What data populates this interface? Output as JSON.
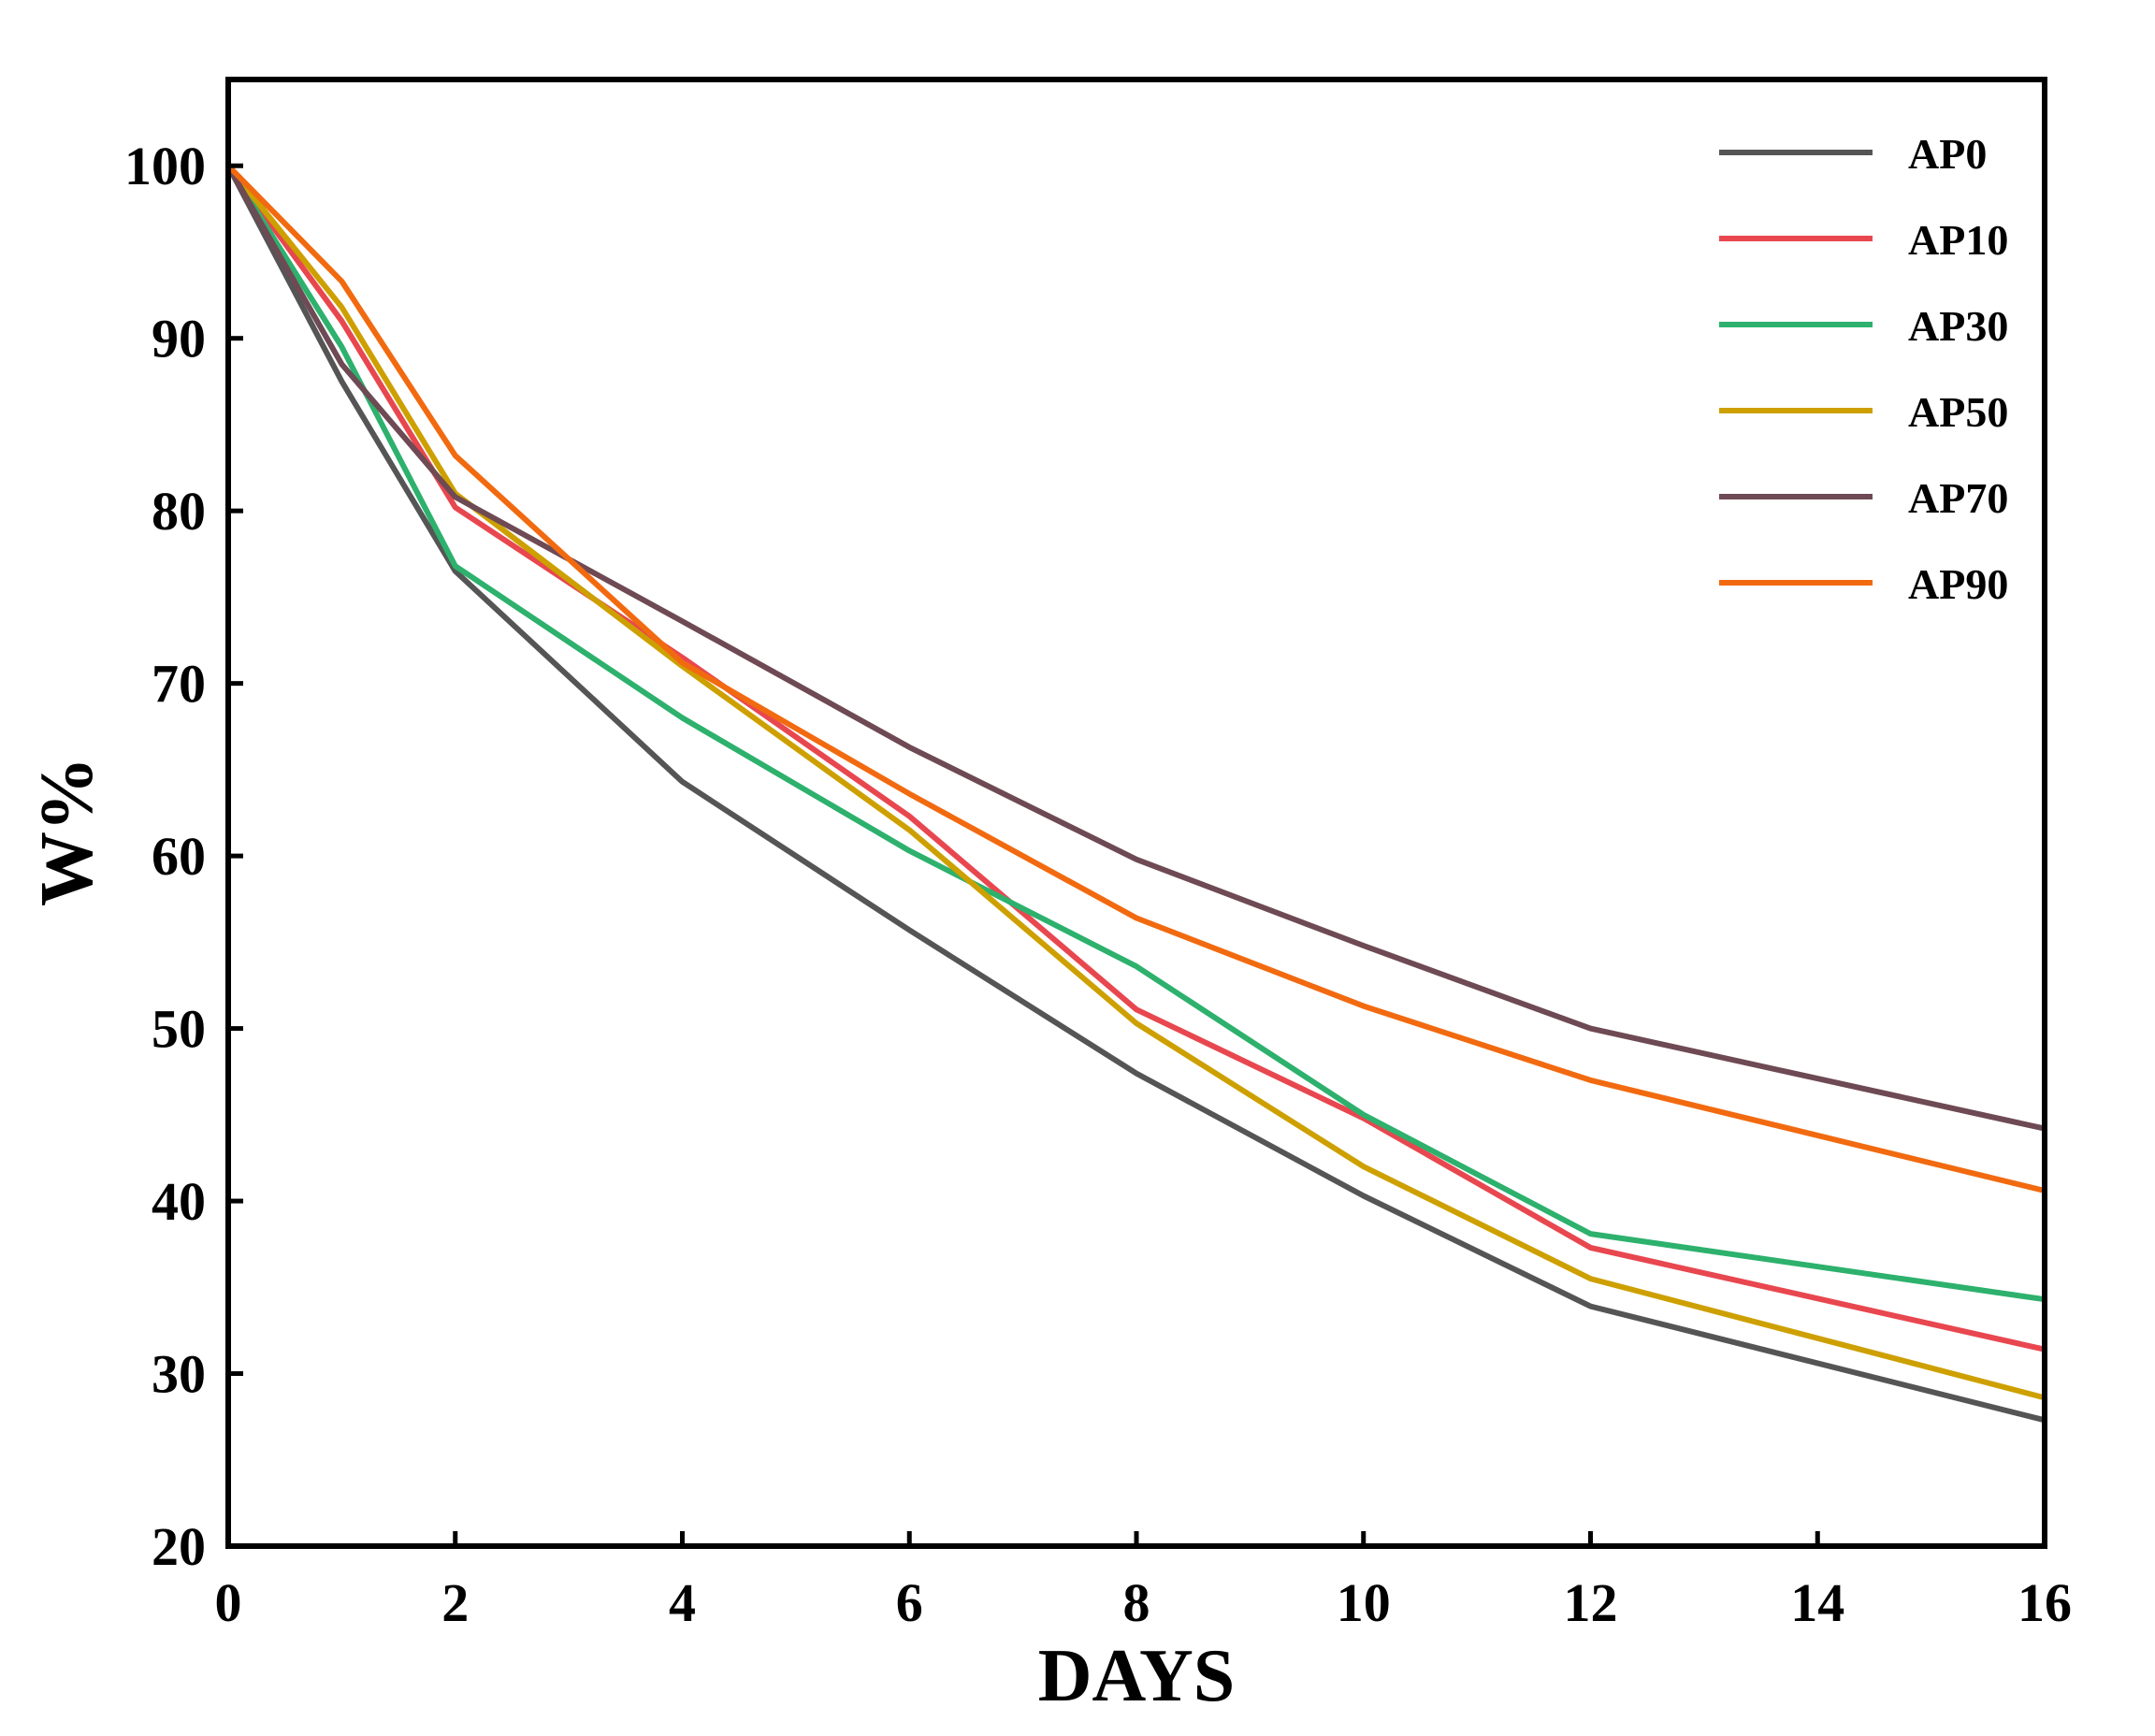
{
  "chart_data": {
    "type": "line",
    "title": "",
    "xlabel": "DAYS",
    "ylabel": "W%",
    "xlim": [
      0,
      16
    ],
    "ylim": [
      20,
      105
    ],
    "xticks": [
      0,
      2,
      4,
      6,
      8,
      10,
      12,
      14,
      16
    ],
    "yticks": [
      20,
      30,
      40,
      50,
      60,
      70,
      80,
      90,
      100
    ],
    "grid": false,
    "legend_position": "top-right",
    "series": [
      {
        "name": "AP0",
        "color": "#555555",
        "x": [
          0,
          1,
          2,
          4,
          6,
          8,
          10,
          12,
          16
        ],
        "values": [
          100,
          87.5,
          76.5,
          64.3,
          55.7,
          47.4,
          40.3,
          33.9,
          27.3
        ]
      },
      {
        "name": "AP10",
        "color": "#E8474F",
        "x": [
          0,
          1,
          2,
          4,
          6,
          8,
          10,
          12,
          16
        ],
        "values": [
          100,
          91.0,
          80.2,
          71.5,
          62.3,
          51.1,
          44.8,
          37.3,
          31.4
        ]
      },
      {
        "name": "AP30",
        "color": "#2DB16D",
        "x": [
          0,
          1,
          2,
          4,
          6,
          8,
          10,
          12,
          16
        ],
        "values": [
          100,
          89.5,
          76.8,
          68.0,
          60.3,
          53.6,
          45.0,
          38.1,
          34.3
        ]
      },
      {
        "name": "AP50",
        "color": "#CDA000",
        "x": [
          0,
          1,
          2,
          4,
          6,
          8,
          10,
          12,
          16
        ],
        "values": [
          100,
          91.8,
          81.0,
          71.0,
          61.5,
          50.3,
          42.0,
          35.5,
          28.6
        ]
      },
      {
        "name": "AP70",
        "color": "#6E4A54",
        "x": [
          0,
          1,
          2,
          4,
          6,
          8,
          10,
          12,
          16
        ],
        "values": [
          100,
          88.5,
          80.8,
          73.6,
          66.3,
          59.8,
          54.8,
          50.0,
          44.2
        ]
      },
      {
        "name": "AP90",
        "color": "#F26A10",
        "x": [
          0,
          1,
          2,
          4,
          6,
          8,
          10,
          12,
          16
        ],
        "values": [
          100,
          93.3,
          83.2,
          71.2,
          63.6,
          56.4,
          51.3,
          47.0,
          40.6
        ]
      }
    ]
  }
}
